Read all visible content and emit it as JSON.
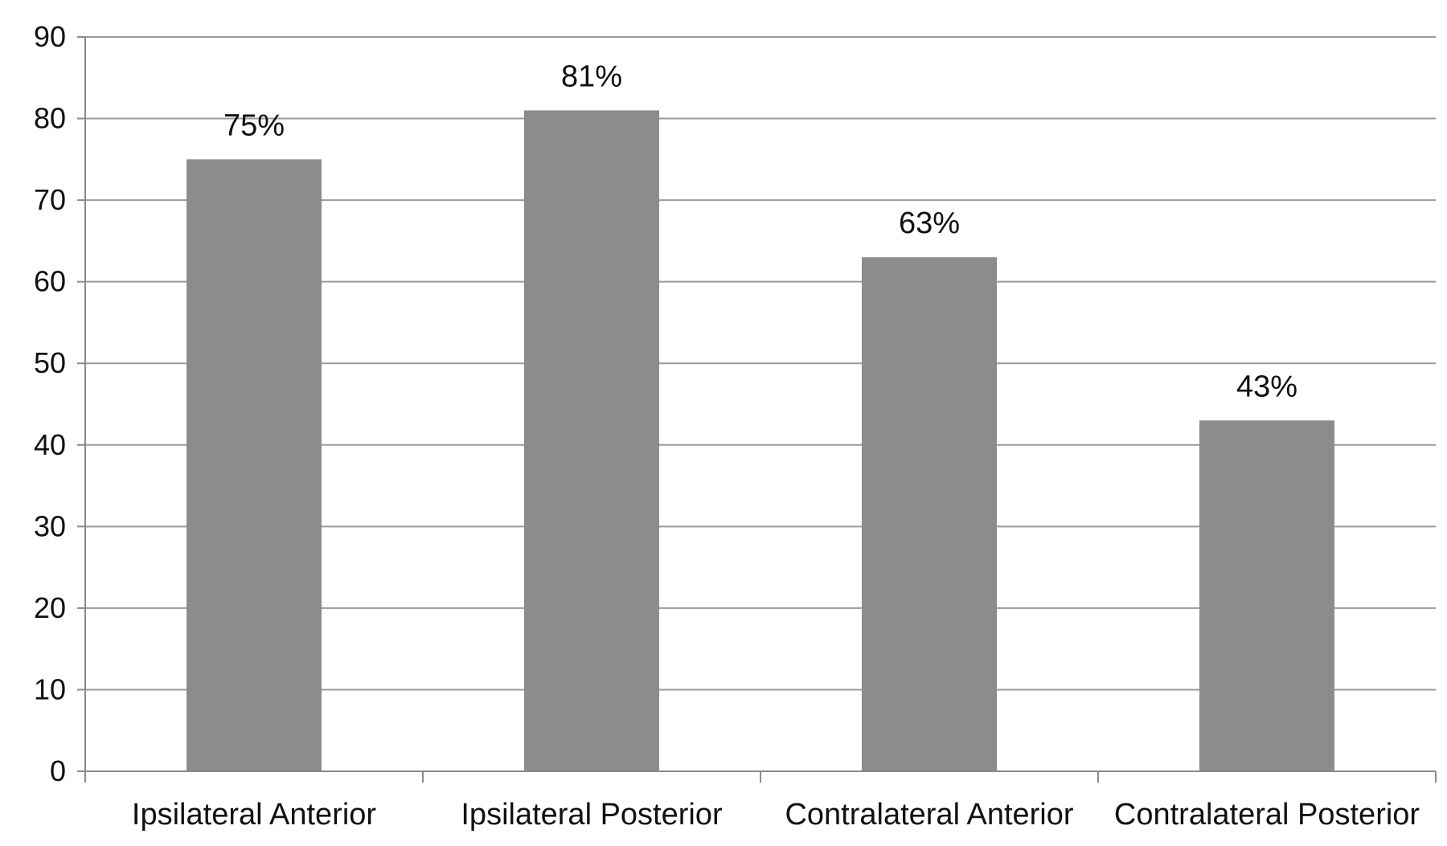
{
  "chart_data": {
    "type": "bar",
    "title": "",
    "xlabel": "",
    "ylabel": "",
    "categories": [
      "Ipsilateral Anterior",
      "Ipsilateral Posterior",
      "Contralateral Anterior",
      "Contralateral Posterior"
    ],
    "values": [
      75,
      81,
      63,
      43
    ],
    "data_labels": [
      "75%",
      "81%",
      "63%",
      "43%"
    ],
    "ylim": [
      0,
      90
    ],
    "yticks": [
      0,
      10,
      20,
      30,
      40,
      50,
      60,
      70,
      80,
      90
    ],
    "grid": true,
    "legend": "none",
    "colors": {
      "bar": "#8c8c8c",
      "grid": "#9a9a9a",
      "axis": "#8a8a8a"
    }
  }
}
